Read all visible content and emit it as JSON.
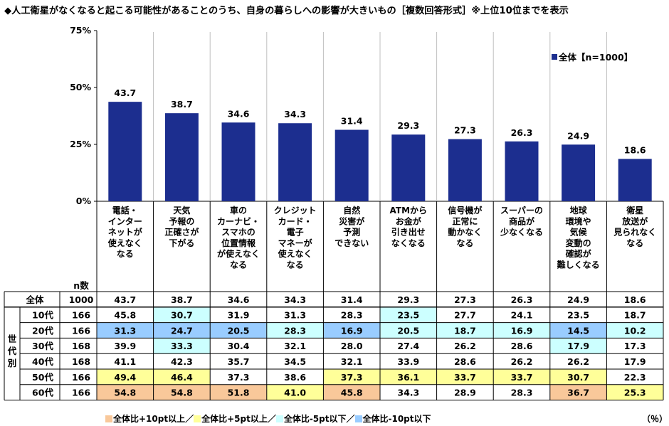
{
  "title": "◆人工衛星がなくなると起こる可能性があることのうち、自身の暮らしへの影響が大きいもの［複数回答形式］※上位10位までを表示",
  "chart_data": {
    "type": "bar",
    "ylim": [
      0,
      75
    ],
    "yticks": [
      "75%",
      "50%",
      "25%",
      "0%"
    ],
    "ytick_values": [
      75,
      50,
      25,
      0
    ],
    "legend": "全体【n=1000】",
    "legend_position": "top-right",
    "bar_color": "#1c2e8f",
    "categories": [
      [
        "電話・",
        "インター",
        "ネットが",
        "使えなく",
        "なる"
      ],
      [
        "天気",
        "予報の",
        "正確さが",
        "下がる"
      ],
      [
        "車の",
        "カーナビ・",
        "スマホの",
        "位置情報",
        "が使えなく",
        "なる"
      ],
      [
        "クレジット",
        "カード・",
        "電子",
        "マネーが",
        "使えなく",
        "なる"
      ],
      [
        "自然",
        "災害が",
        "予測",
        "できない"
      ],
      [
        "ATMから",
        "お金が",
        "引き出せ",
        "なくなる"
      ],
      [
        "信号機が",
        "正常に",
        "動かなく",
        "なる"
      ],
      [
        "スーパーの",
        "商品が",
        "少なくなる"
      ],
      [
        "地球",
        "環境や",
        "気候",
        "変動の",
        "確認が",
        "難しくなる"
      ],
      [
        "衛星",
        "放送が",
        "見られなく",
        "なる"
      ]
    ],
    "values": [
      43.7,
      38.7,
      34.6,
      34.3,
      31.4,
      29.3,
      27.3,
      26.3,
      24.9,
      18.6
    ]
  },
  "table": {
    "n_header": "n数",
    "group_label": [
      "世",
      "代",
      "別"
    ],
    "rows": [
      {
        "label": "全体",
        "n": "1000",
        "cells": [
          "43.7",
          "38.7",
          "34.6",
          "34.3",
          "31.4",
          "29.3",
          "27.3",
          "26.3",
          "24.9",
          "18.6"
        ],
        "marks": [
          "",
          "",
          "",
          "",
          "",
          "",
          "",
          "",
          "",
          ""
        ]
      },
      {
        "label": "10代",
        "n": "166",
        "cells": [
          "45.8",
          "30.7",
          "31.9",
          "31.3",
          "28.3",
          "23.5",
          "27.7",
          "24.1",
          "23.5",
          "18.7"
        ],
        "marks": [
          "",
          "m5",
          "",
          "",
          "",
          "m5",
          "",
          "",
          "",
          ""
        ]
      },
      {
        "label": "20代",
        "n": "166",
        "cells": [
          "31.3",
          "24.7",
          "20.5",
          "28.3",
          "16.9",
          "20.5",
          "18.7",
          "16.9",
          "14.5",
          "10.2"
        ],
        "marks": [
          "m10",
          "m10",
          "m10",
          "m5",
          "m10",
          "m5",
          "m5",
          "m5",
          "m10",
          "m5"
        ]
      },
      {
        "label": "30代",
        "n": "168",
        "cells": [
          "39.9",
          "33.3",
          "30.4",
          "32.1",
          "28.0",
          "27.4",
          "26.2",
          "28.6",
          "17.9",
          "17.3"
        ],
        "marks": [
          "",
          "m5",
          "",
          "",
          "",
          "",
          "",
          "",
          "m5",
          ""
        ]
      },
      {
        "label": "40代",
        "n": "168",
        "cells": [
          "41.1",
          "42.3",
          "35.7",
          "34.5",
          "32.1",
          "33.9",
          "28.6",
          "26.2",
          "26.2",
          "17.9"
        ],
        "marks": [
          "",
          "",
          "",
          "",
          "",
          "",
          "",
          "",
          "",
          ""
        ]
      },
      {
        "label": "50代",
        "n": "166",
        "cells": [
          "49.4",
          "46.4",
          "37.3",
          "38.6",
          "37.3",
          "36.1",
          "33.7",
          "33.7",
          "30.7",
          "22.3"
        ],
        "marks": [
          "p5",
          "p5",
          "",
          "",
          "p5",
          "p5",
          "p5",
          "p5",
          "p5",
          ""
        ]
      },
      {
        "label": "60代",
        "n": "166",
        "cells": [
          "54.8",
          "54.8",
          "51.8",
          "41.0",
          "45.8",
          "34.3",
          "28.9",
          "28.3",
          "36.7",
          "25.3"
        ],
        "marks": [
          "p10",
          "p10",
          "p10",
          "p5",
          "p10",
          "",
          "",
          "",
          "p10",
          "p5"
        ]
      }
    ]
  },
  "highlight_colors": {
    "p10": "#f9c89a",
    "p5": "#ffff99",
    "m5": "#ccffff",
    "m10": "#99ccff"
  },
  "legend_items": [
    {
      "key": "p10",
      "label": "全体比+10pt以上／"
    },
    {
      "key": "p5",
      "label": "全体比+5pt以上／"
    },
    {
      "key": "m5",
      "label": "全体比-5pt以下／"
    },
    {
      "key": "m10",
      "label": "全体比-10pt以下"
    }
  ],
  "unit_label": "（％）"
}
